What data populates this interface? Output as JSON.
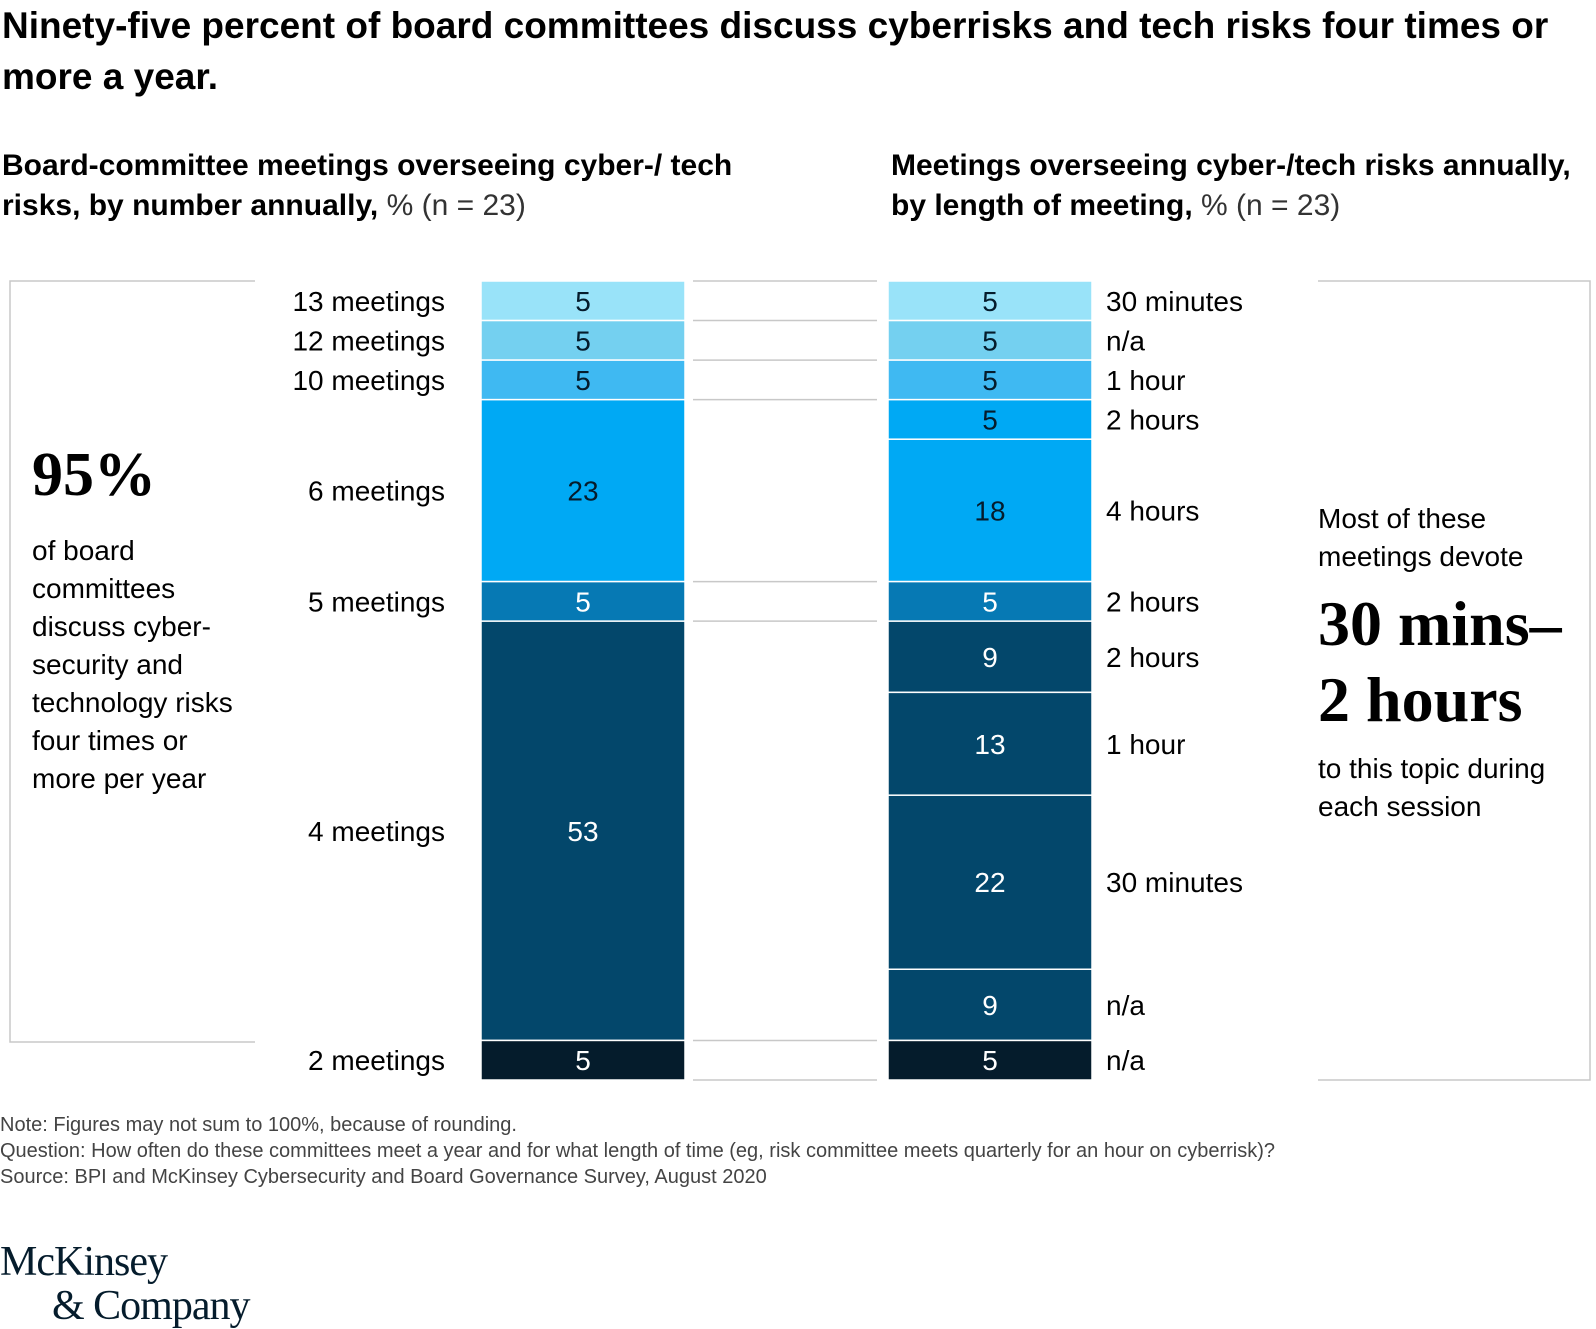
{
  "title": "Ninety-five percent of board committees discuss cyberrisks and tech risks four times or more a year.",
  "left_subtitle": {
    "bold": "Board-committee meetings overseeing cyber-/ tech risks, by number annually,",
    "unit": " % (n = 23)"
  },
  "right_subtitle": {
    "bold": "Meetings overseeing cyber-/tech risks annually, by length of meeting,",
    "unit": " % (n = 23)"
  },
  "left_callout": {
    "big": "95%",
    "text": "of board committees discuss cyber-security and technology risks four times or more per year"
  },
  "right_callout": {
    "pre": "Most of these meetings devote",
    "big": "30 mins– 2 hours",
    "post": "to this topic during each session"
  },
  "notes": {
    "note": "Note: Figures may not sum to 100%, because of rounding.",
    "question": "Question: How often do these committees meet a year and for what length of time (eg, risk committee meets quarterly for an hour on cyberrisk)?",
    "source": "Source: BPI and McKinsey Cybersecurity and Board Governance Survey, August 2020"
  },
  "logo": {
    "line1": "McKinsey",
    "line2": "& Company"
  },
  "chart_data": [
    {
      "type": "bar",
      "stacked": true,
      "categories": [
        "13 meetings",
        "12 meetings",
        "10 meetings",
        "6 meetings",
        "5 meetings",
        "4 meetings",
        "2 meetings"
      ],
      "values": [
        5,
        5,
        5,
        23,
        5,
        53,
        5
      ],
      "colors": [
        "#99e3f9",
        "#74d0f0",
        "#3fb9f2",
        "#00a9f4",
        "#0679b4",
        "#03476b",
        "#051c2c"
      ]
    },
    {
      "type": "bar",
      "stacked": true,
      "categories": [
        "30 minutes",
        "n/a",
        "1 hour",
        "2 hours",
        "4 hours",
        "2 hours",
        "2 hours",
        "1 hour",
        "30 minutes",
        "n/a",
        "n/a"
      ],
      "values": [
        5,
        5,
        5,
        5,
        18,
        5,
        9,
        13,
        22,
        9,
        5
      ],
      "group_of": [
        0,
        1,
        2,
        3,
        3,
        4,
        5,
        5,
        5,
        5,
        6
      ],
      "colors": [
        "#99e3f9",
        "#74d0f0",
        "#3fb9f2",
        "#00a9f4",
        "#00a9f4",
        "#0679b4",
        "#03476b",
        "#03476b",
        "#03476b",
        "#03476b",
        "#051c2c"
      ]
    }
  ]
}
